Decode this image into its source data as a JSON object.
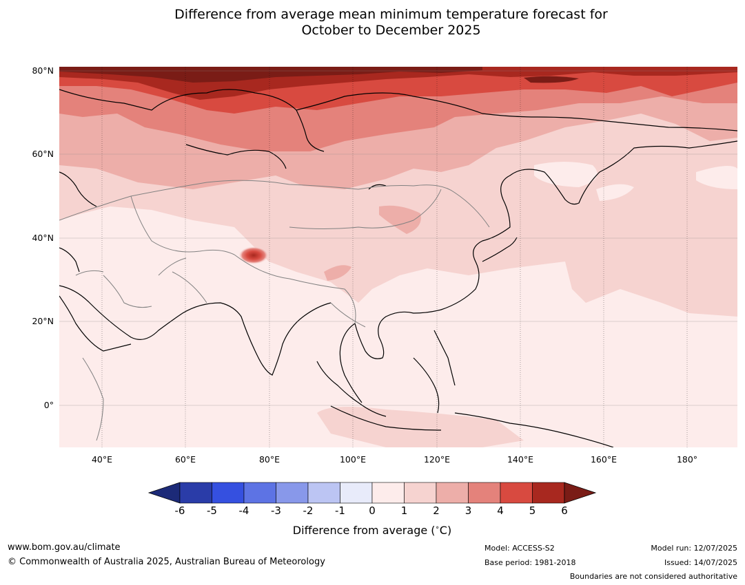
{
  "title": {
    "line1": "Difference from average mean minimum temperature forecast for",
    "line2": "October to December 2025"
  },
  "map": {
    "lat_labels": [
      "80°N",
      "60°N",
      "40°N",
      "20°N",
      "0°"
    ],
    "lon_labels": [
      "40°E",
      "60°E",
      "80°E",
      "100°E",
      "120°E",
      "140°E",
      "160°E",
      "180°"
    ]
  },
  "colorbar": {
    "ticks": [
      "-6",
      "-5",
      "-4",
      "-3",
      "-2",
      "-1",
      "0",
      "1",
      "2",
      "3",
      "4",
      "5",
      "6"
    ],
    "colors": [
      "#2a3ca8",
      "#3550e0",
      "#5d73e4",
      "#8898ea",
      "#bcc5f3",
      "#e8ebfa",
      "#fdeceb",
      "#f6d3d0",
      "#edaea9",
      "#e4827b",
      "#d84a40",
      "#a8281f"
    ],
    "below_color": "#1c2a78",
    "above_color": "#7a1c16",
    "label": "Difference from average (°C)"
  },
  "footer": {
    "website": "www.bom.gov.au/climate",
    "copyright": "© Commonwealth of Australia 2025, Australian Bureau of Meteorology",
    "model": "Model: ACCESS-S2",
    "base_period": "Base period: 1981-2018",
    "model_run": "Model run: 12/07/2025",
    "issued": "Issued: 14/07/2025",
    "disclaimer": "Boundaries are not considered authoritative"
  }
}
